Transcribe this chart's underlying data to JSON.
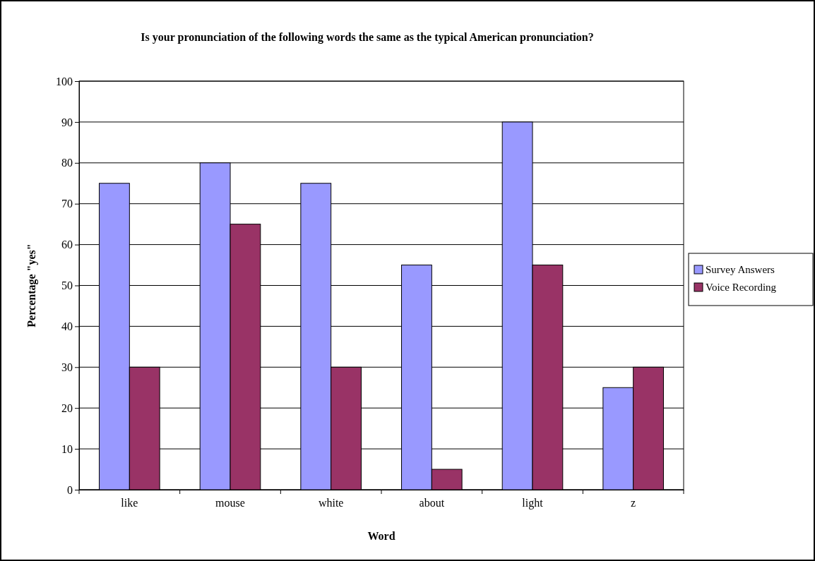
{
  "chart_data": {
    "type": "bar",
    "title": "Is your pronunciation of the following words the same as the typical American pronunciation?",
    "xlabel": "Word",
    "ylabel": "Percentage \"yes\"",
    "categories": [
      "like",
      "mouse",
      "white",
      "about",
      "light",
      "z"
    ],
    "series": [
      {
        "name": "Survey Answers",
        "color": "#9999ff",
        "values": [
          75,
          80,
          75,
          55,
          90,
          25
        ]
      },
      {
        "name": "Voice Recording",
        "color": "#993366",
        "values": [
          30,
          65,
          30,
          5,
          55,
          30
        ]
      }
    ],
    "ylim": [
      0,
      100
    ],
    "yticks": [
      0,
      10,
      20,
      30,
      40,
      50,
      60,
      70,
      80,
      90,
      100
    ],
    "grid": "y",
    "legend": "right"
  }
}
